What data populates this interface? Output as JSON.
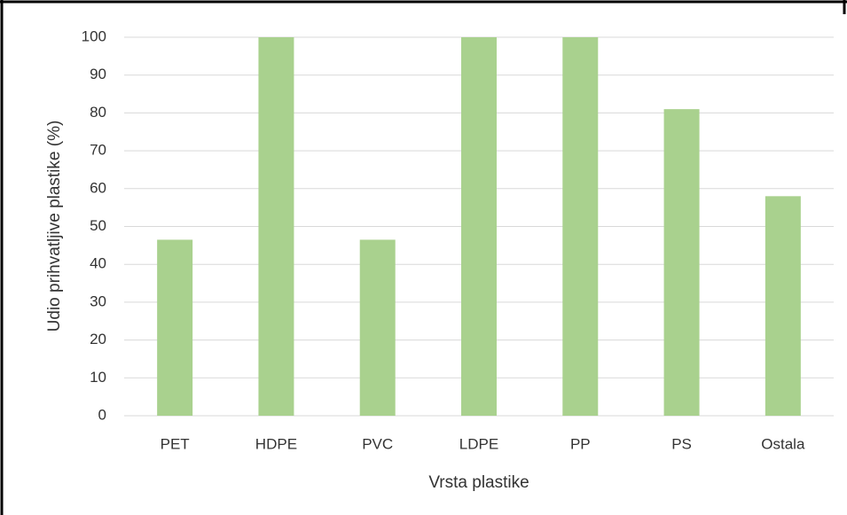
{
  "chart_data": {
    "type": "bar",
    "y_label": "Udio prihvatljive plastike (%)",
    "x_label": "Vrsta plastike",
    "categories": [
      "PET",
      "HDPE",
      "PVC",
      "LDPE",
      "PP",
      "PS",
      "Ostala"
    ],
    "values": [
      46.5,
      100,
      46.5,
      100,
      100,
      81,
      58
    ],
    "color": "#a9d18e",
    "ylim": [
      0,
      100
    ],
    "yticks": [
      0,
      10,
      20,
      30,
      40,
      50,
      60,
      70,
      80,
      90,
      100
    ],
    "grid": true
  }
}
